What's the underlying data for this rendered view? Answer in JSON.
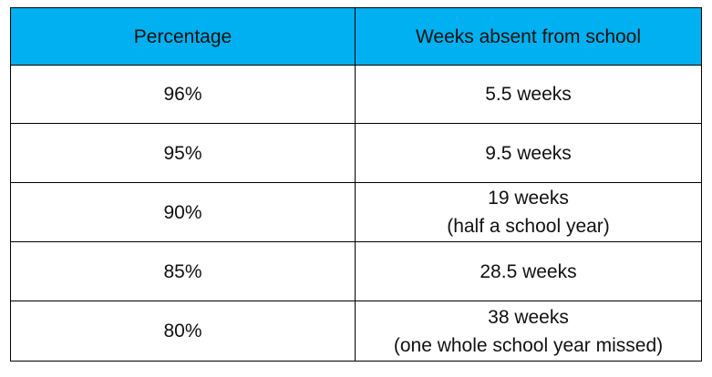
{
  "table": {
    "headers": {
      "percentage": "Percentage",
      "weeks": "Weeks absent from school"
    },
    "rows": [
      {
        "percentage": "96%",
        "weeks": "5.5 weeks",
        "note": ""
      },
      {
        "percentage": "95%",
        "weeks": "9.5 weeks",
        "note": ""
      },
      {
        "percentage": "90%",
        "weeks": "19 weeks",
        "note": "(half a school year)"
      },
      {
        "percentage": "85%",
        "weeks": "28.5 weeks",
        "note": ""
      },
      {
        "percentage": "80%",
        "weeks": "38 weeks",
        "note": "(one whole school year missed)"
      }
    ]
  },
  "colors": {
    "header_background": "#00b0f0",
    "border": "#000000",
    "text": "#111111"
  }
}
